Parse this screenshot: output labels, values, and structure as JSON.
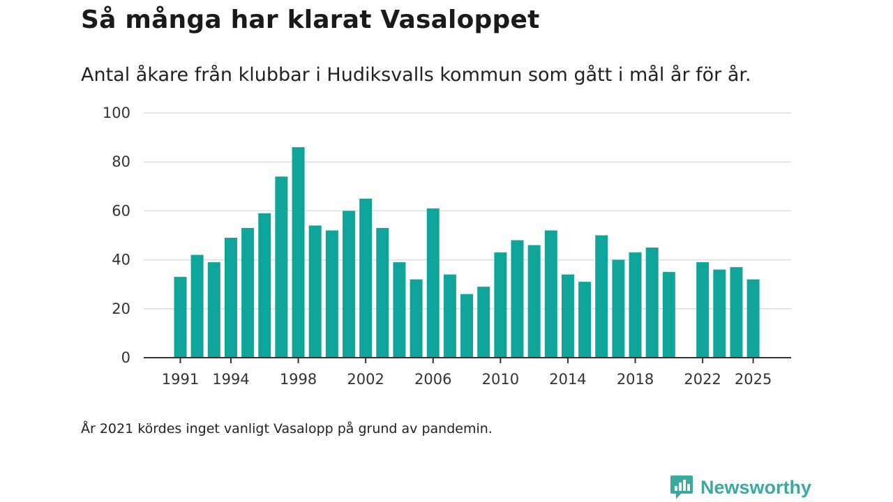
{
  "title": "Så många har klarat Vasaloppet",
  "subtitle": "Antal åkare från klubbar i Hudiksvalls kommun som gått i mål år för år.",
  "footnote": "År 2021 kördes inget vanligt Vasalopp på grund av pandemin.",
  "brand": {
    "name": "Newsworthy",
    "icon": "newsworthy-logo-icon",
    "color": "#3ba99f"
  },
  "colors": {
    "bar": "#0fa59a",
    "grid": "#dddddd",
    "axis": "#333333"
  },
  "chart_data": {
    "type": "bar",
    "title": "Så många har klarat Vasaloppet",
    "xlabel": "",
    "ylabel": "",
    "ylim": [
      0,
      100
    ],
    "yticks": [
      0,
      20,
      40,
      60,
      80,
      100
    ],
    "xtick_labels": [
      "1991",
      "1994",
      "1998",
      "2002",
      "2006",
      "2010",
      "2014",
      "2018",
      "2022",
      "2025"
    ],
    "grid": true,
    "categories": [
      1991,
      1992,
      1993,
      1994,
      1995,
      1996,
      1997,
      1998,
      1999,
      2000,
      2001,
      2002,
      2003,
      2004,
      2005,
      2006,
      2007,
      2008,
      2009,
      2010,
      2011,
      2012,
      2013,
      2014,
      2015,
      2016,
      2017,
      2018,
      2019,
      2020,
      2021,
      2022,
      2023,
      2024,
      2025
    ],
    "values": [
      33,
      42,
      39,
      49,
      53,
      59,
      74,
      86,
      54,
      52,
      60,
      65,
      53,
      39,
      32,
      61,
      34,
      26,
      29,
      43,
      48,
      46,
      52,
      34,
      31,
      50,
      40,
      43,
      45,
      35,
      null,
      39,
      36,
      37,
      32
    ]
  }
}
